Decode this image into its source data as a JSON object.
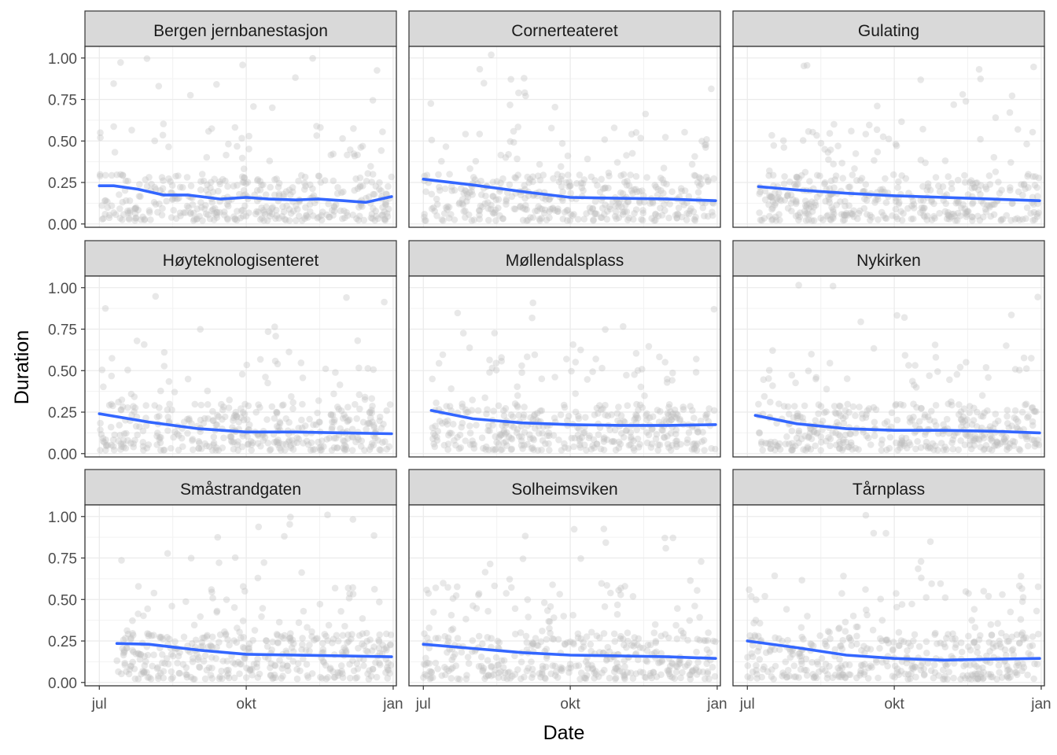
{
  "chart_data": {
    "type": "scatter",
    "layout": "facet-grid-3x3",
    "xlabel": "Date",
    "ylabel": "Duration",
    "x_ticks": [
      "jul",
      "okt",
      "jan"
    ],
    "x_tick_dates": [
      "2018-07-01",
      "2018-10-01",
      "2019-01-01"
    ],
    "xlim": [
      "2018-06-22",
      "2019-01-03"
    ],
    "y_ticks": [
      "0.00",
      "0.25",
      "0.50",
      "0.75",
      "1.00"
    ],
    "y_tick_values": [
      0,
      0.25,
      0.5,
      0.75,
      1.0
    ],
    "ylim": [
      -0.02,
      1.07
    ],
    "grid": true,
    "point_color": "#bebebe",
    "point_opacity": 0.35,
    "smooth_color": "#3366ff",
    "panels": [
      {
        "title": "Bergen jernbanestasjon",
        "date_start": "2018-07-01",
        "date_end": "2018-12-31",
        "smooth": {
          "x": [
            "2018-07-01",
            "2018-07-10",
            "2018-07-25",
            "2018-08-10",
            "2018-08-25",
            "2018-09-15",
            "2018-10-01",
            "2018-10-15",
            "2018-11-01",
            "2018-11-15",
            "2018-12-01",
            "2018-12-15",
            "2018-12-31"
          ],
          "y": [
            0.23,
            0.23,
            0.21,
            0.175,
            0.175,
            0.15,
            0.16,
            0.15,
            0.145,
            0.15,
            0.14,
            0.13,
            0.165
          ]
        }
      },
      {
        "title": "Cornerteateret",
        "date_start": "2018-07-01",
        "date_end": "2018-12-31",
        "smooth": {
          "x": [
            "2018-07-01",
            "2018-08-01",
            "2018-09-01",
            "2018-10-01",
            "2018-11-01",
            "2018-12-01",
            "2018-12-31"
          ],
          "y": [
            0.27,
            0.235,
            0.195,
            0.16,
            0.155,
            0.15,
            0.14
          ]
        }
      },
      {
        "title": "Gulating",
        "date_start": "2018-07-08",
        "date_end": "2018-12-31",
        "smooth": {
          "x": [
            "2018-07-08",
            "2018-08-01",
            "2018-09-01",
            "2018-10-01",
            "2018-11-01",
            "2018-12-01",
            "2018-12-31"
          ],
          "y": [
            0.225,
            0.205,
            0.185,
            0.17,
            0.16,
            0.15,
            0.14
          ]
        }
      },
      {
        "title": "Høyteknologisenteret",
        "date_start": "2018-07-01",
        "date_end": "2018-12-31",
        "smooth": {
          "x": [
            "2018-07-01",
            "2018-08-01",
            "2018-09-01",
            "2018-10-01",
            "2018-11-01",
            "2018-12-01",
            "2018-12-31"
          ],
          "y": [
            0.24,
            0.19,
            0.15,
            0.13,
            0.13,
            0.125,
            0.12
          ]
        }
      },
      {
        "title": "Møllendalsplass",
        "date_start": "2018-07-06",
        "date_end": "2018-12-31",
        "smooth": {
          "x": [
            "2018-07-06",
            "2018-08-01",
            "2018-09-01",
            "2018-10-01",
            "2018-11-01",
            "2018-12-01",
            "2018-12-31"
          ],
          "y": [
            0.26,
            0.21,
            0.185,
            0.175,
            0.17,
            0.17,
            0.175
          ]
        }
      },
      {
        "title": "Nykirken",
        "date_start": "2018-07-06",
        "date_end": "2018-12-31",
        "smooth": {
          "x": [
            "2018-07-06",
            "2018-08-01",
            "2018-09-01",
            "2018-10-01",
            "2018-11-01",
            "2018-12-01",
            "2018-12-31"
          ],
          "y": [
            0.23,
            0.18,
            0.15,
            0.14,
            0.14,
            0.135,
            0.125
          ]
        }
      },
      {
        "title": "Småstrandgaten",
        "date_start": "2018-07-12",
        "date_end": "2018-12-31",
        "smooth": {
          "x": [
            "2018-07-12",
            "2018-08-01",
            "2018-09-01",
            "2018-10-01",
            "2018-11-01",
            "2018-12-01",
            "2018-12-31"
          ],
          "y": [
            0.235,
            0.23,
            0.195,
            0.17,
            0.165,
            0.16,
            0.155
          ]
        }
      },
      {
        "title": "Solheimsviken",
        "date_start": "2018-07-01",
        "date_end": "2018-12-31",
        "smooth": {
          "x": [
            "2018-07-01",
            "2018-08-01",
            "2018-09-01",
            "2018-10-01",
            "2018-11-01",
            "2018-12-01",
            "2018-12-31"
          ],
          "y": [
            0.23,
            0.205,
            0.18,
            0.165,
            0.16,
            0.155,
            0.145
          ]
        }
      },
      {
        "title": "Tårnplass",
        "date_start": "2018-07-01",
        "date_end": "2018-12-31",
        "smooth": {
          "x": [
            "2018-07-01",
            "2018-08-01",
            "2018-09-01",
            "2018-10-01",
            "2018-11-01",
            "2018-12-01",
            "2018-12-31"
          ],
          "y": [
            0.25,
            0.21,
            0.165,
            0.145,
            0.135,
            0.14,
            0.145
          ]
        }
      }
    ]
  }
}
